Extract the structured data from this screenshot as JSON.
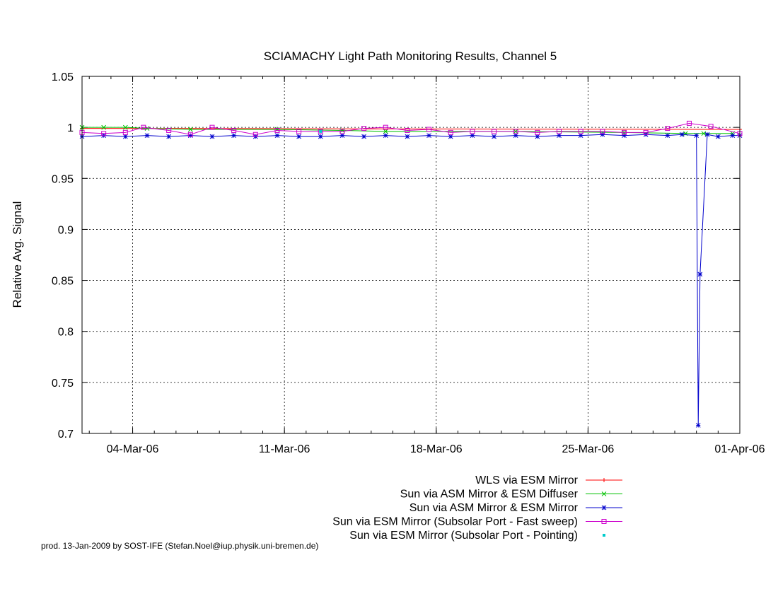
{
  "chart_data": {
    "type": "line",
    "title": "SCIAMACHY Light Path Monitoring Results, Channel 5",
    "ylabel": "Relative Avg. Signal",
    "xlabel": "",
    "ylim": [
      0.7,
      1.05
    ],
    "yticks": [
      0.7,
      0.75,
      0.8,
      0.85,
      0.9,
      0.95,
      1,
      1.05
    ],
    "ytick_labels": [
      "0.7",
      "0.75",
      "0.8",
      "0.85",
      "0.9",
      "0.95",
      "1",
      "1.05"
    ],
    "xlim": [
      "2006-03-01 16:00",
      "2006-04-01 00:00"
    ],
    "xticks": [
      "2006-03-04",
      "2006-03-11",
      "2006-03-18",
      "2006-03-25",
      "2006-04-01"
    ],
    "xtick_labels": [
      "04-Mar-06",
      "11-Mar-06",
      "18-Mar-06",
      "25-Mar-06",
      "01-Apr-06"
    ],
    "grid": true,
    "legend_position": "below",
    "series": [
      {
        "name": "WLS via ESM Mirror",
        "color": "#ff0000",
        "marker": "plus",
        "x": [
          "2006-03-01 16:00",
          "2006-04-01 00:00"
        ],
        "y": [
          0.999,
          0.998
        ]
      },
      {
        "name": "Sun via ASM Mirror & ESM Diffuser",
        "color": "#00c000",
        "marker": "cross",
        "x": [
          "2006-03-01 16:00",
          "2006-03-02 16:00",
          "2006-03-03 16:00",
          "2006-03-04 16:00",
          "2006-03-06 16:00",
          "2006-03-10 16:00",
          "2006-03-13 16:00",
          "2006-03-15 16:00",
          "2006-03-21 16:00",
          "2006-03-26 16:00",
          "2006-03-29 12:00",
          "2006-03-30 08:00",
          "2006-03-31 16:00"
        ],
        "y": [
          1.0,
          1.0,
          1.0,
          0.999,
          0.998,
          0.998,
          0.997,
          0.996,
          0.996,
          0.995,
          0.994,
          0.994,
          0.994
        ]
      },
      {
        "name": "Sun via ASM Mirror & ESM Mirror",
        "color": "#0000cc",
        "marker": "star",
        "x": [
          "2006-03-01 16:00",
          "2006-03-02 16:00",
          "2006-03-03 16:00",
          "2006-03-04 16:00",
          "2006-03-05 16:00",
          "2006-03-06 16:00",
          "2006-03-07 16:00",
          "2006-03-08 16:00",
          "2006-03-09 16:00",
          "2006-03-10 16:00",
          "2006-03-11 16:00",
          "2006-03-12 16:00",
          "2006-03-13 16:00",
          "2006-03-14 16:00",
          "2006-03-15 16:00",
          "2006-03-16 16:00",
          "2006-03-17 16:00",
          "2006-03-18 16:00",
          "2006-03-19 16:00",
          "2006-03-20 16:00",
          "2006-03-21 16:00",
          "2006-03-22 16:00",
          "2006-03-23 16:00",
          "2006-03-24 16:00",
          "2006-03-25 16:00",
          "2006-03-26 16:00",
          "2006-03-27 16:00",
          "2006-03-28 16:00",
          "2006-03-29 08:00",
          "2006-03-30 00:00",
          "2006-03-30 02:00",
          "2006-03-30 04:00",
          "2006-03-30 12:00",
          "2006-03-31 00:00",
          "2006-03-31 16:00",
          "2006-04-01 00:00"
        ],
        "y": [
          0.991,
          0.992,
          0.991,
          0.992,
          0.991,
          0.992,
          0.991,
          0.992,
          0.991,
          0.992,
          0.991,
          0.991,
          0.992,
          0.991,
          0.992,
          0.991,
          0.992,
          0.991,
          0.992,
          0.991,
          0.992,
          0.991,
          0.992,
          0.992,
          0.993,
          0.992,
          0.993,
          0.992,
          0.993,
          0.992,
          0.708,
          0.856,
          0.993,
          0.991,
          0.992,
          0.992
        ]
      },
      {
        "name": "Sun via ESM Mirror (Subsolar Port - Fast sweep)",
        "color": "#cc00cc",
        "marker": "square",
        "x": [
          "2006-03-01 16:00",
          "2006-03-02 16:00",
          "2006-03-03 16:00",
          "2006-03-04 12:00",
          "2006-03-05 16:00",
          "2006-03-06 16:00",
          "2006-03-07 16:00",
          "2006-03-08 16:00",
          "2006-03-09 16:00",
          "2006-03-10 16:00",
          "2006-03-11 16:00",
          "2006-03-12 16:00",
          "2006-03-13 16:00",
          "2006-03-14 16:00",
          "2006-03-15 16:00",
          "2006-03-16 16:00",
          "2006-03-17 16:00",
          "2006-03-18 16:00",
          "2006-03-19 16:00",
          "2006-03-20 16:00",
          "2006-03-21 16:00",
          "2006-03-22 16:00",
          "2006-03-23 16:00",
          "2006-03-24 16:00",
          "2006-03-25 16:00",
          "2006-03-26 16:00",
          "2006-03-27 16:00",
          "2006-03-28 16:00",
          "2006-03-29 16:00",
          "2006-03-30 16:00",
          "2006-04-01 00:00"
        ],
        "y": [
          0.995,
          0.994,
          0.995,
          1.0,
          0.997,
          0.993,
          1.0,
          0.997,
          0.993,
          0.997,
          0.996,
          0.996,
          0.996,
          0.999,
          1.0,
          0.997,
          0.998,
          0.995,
          0.996,
          0.996,
          0.996,
          0.995,
          0.996,
          0.996,
          0.996,
          0.995,
          0.995,
          0.999,
          1.004,
          1.001,
          0.994
        ]
      },
      {
        "name": "Sun via ESM Mirror (Subsolar Port - Pointing)",
        "color": "#00cccc",
        "marker": "dot",
        "x": [
          "2006-03-12 16:00"
        ],
        "y": [
          0.996
        ]
      }
    ]
  },
  "footer": "prod. 13-Jan-2009 by SOST-IFE (Stefan.Noel@iup.physik.uni-bremen.de)"
}
